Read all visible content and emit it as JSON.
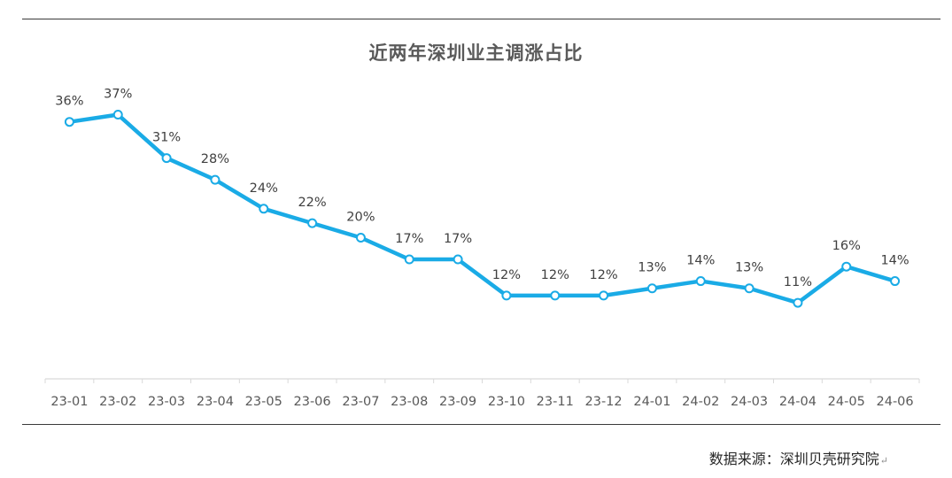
{
  "chart_data": {
    "type": "line",
    "title": "近两年深圳业主调涨占比",
    "categories": [
      "23-01",
      "23-02",
      "23-03",
      "23-04",
      "23-05",
      "23-06",
      "23-07",
      "23-08",
      "23-09",
      "23-10",
      "23-11",
      "23-12",
      "24-01",
      "24-02",
      "24-03",
      "24-04",
      "24-05",
      "24-06"
    ],
    "series": [
      {
        "values": [
          36,
          37,
          31,
          28,
          24,
          22,
          20,
          17,
          17,
          12,
          12,
          12,
          13,
          14,
          13,
          11,
          16,
          14
        ],
        "labels": [
          "36%",
          "37%",
          "31%",
          "28%",
          "24%",
          "22%",
          "20%",
          "17%",
          "17%",
          "12%",
          "12%",
          "12%",
          "13%",
          "14%",
          "13%",
          "11%",
          "16%",
          "14%"
        ],
        "color": "#1aabe6"
      }
    ],
    "y_unit": "%",
    "ylim": [
      0,
      40
    ],
    "grid": false,
    "legend": "none"
  },
  "source_note": "数据来源：深圳贝壳研究院"
}
